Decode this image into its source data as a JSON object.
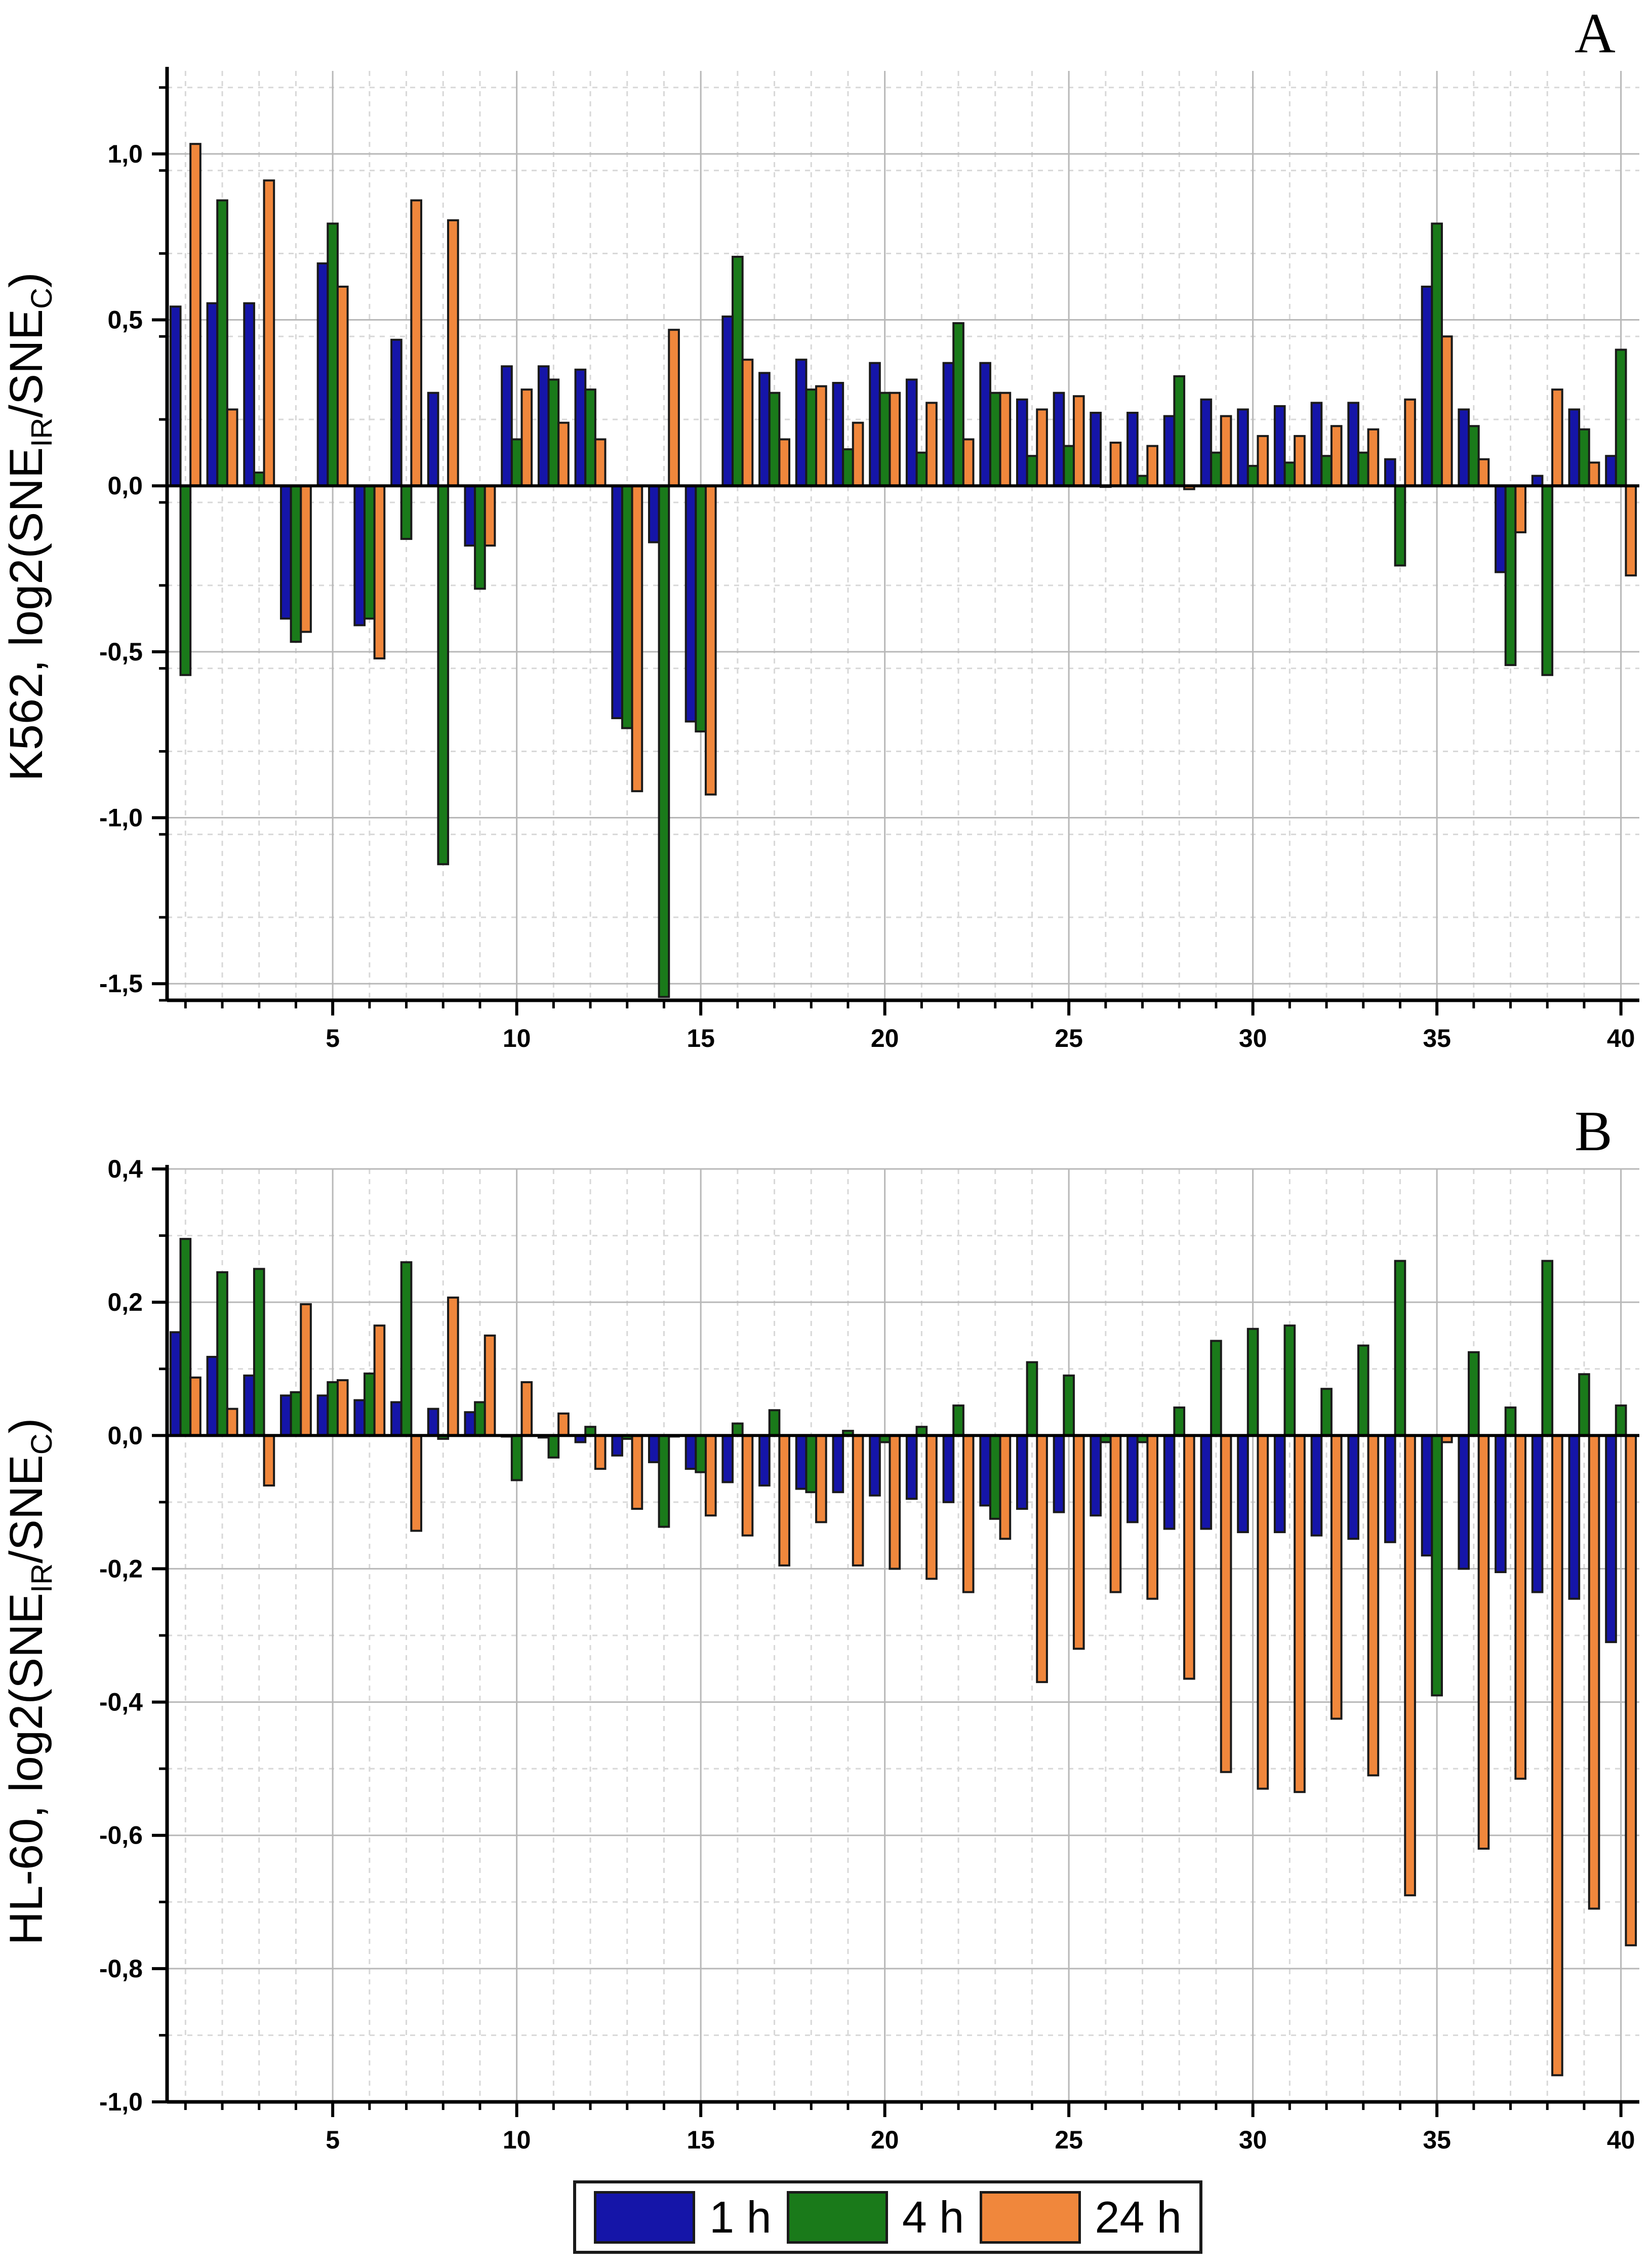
{
  "chart_data": [
    {
      "type": "bar",
      "panel": "A",
      "ylabel": "K562, log2(SNE_IR/SNE_C)",
      "ylabel_main": "K562, log2(SNE",
      "ylabel_sub1": "IR",
      "ylabel_mid": "/SNE",
      "ylabel_sub2": "C",
      "ylabel_end": ")",
      "ylim": [
        -1.55,
        1.25
      ],
      "yticks": [
        -1.5,
        -1.0,
        -0.5,
        0.0,
        0.5,
        1.0
      ],
      "ytick_labels": [
        "-1,5",
        "-1,0",
        "-0,5",
        "0,0",
        "0,5",
        "1,0"
      ],
      "xlim": [
        0.5,
        40.5
      ],
      "xticks": [
        5,
        10,
        15,
        20,
        25,
        30,
        35,
        40
      ],
      "xtick_labels": [
        "5",
        "10",
        "15",
        "20",
        "25",
        "30",
        "35",
        "40"
      ],
      "categories": [
        1,
        2,
        3,
        4,
        5,
        6,
        7,
        8,
        9,
        10,
        11,
        12,
        13,
        14,
        15,
        16,
        17,
        18,
        19,
        20,
        21,
        22,
        23,
        24,
        25,
        26,
        27,
        28,
        29,
        30,
        31,
        32,
        33,
        34,
        35,
        36,
        37,
        38,
        39,
        40
      ],
      "series": [
        {
          "name": "1 h",
          "values": [
            0.54,
            0.55,
            0.55,
            -0.4,
            0.67,
            -0.42,
            0.44,
            0.28,
            -0.18,
            0.36,
            0.36,
            0.35,
            -0.7,
            -0.17,
            -0.71,
            0.51,
            0.34,
            0.38,
            0.31,
            0.37,
            0.32,
            0.37,
            0.37,
            0.26,
            0.28,
            0.22,
            0.22,
            0.21,
            0.26,
            0.23,
            0.24,
            0.25,
            0.25,
            0.08,
            0.6,
            0.23,
            -0.26,
            0.03,
            0.23,
            0.09
          ]
        },
        {
          "name": "4 h",
          "values": [
            -0.57,
            0.86,
            0.04,
            -0.47,
            0.79,
            -0.4,
            -0.16,
            -1.14,
            -0.31,
            0.14,
            0.32,
            0.29,
            -0.73,
            -1.54,
            -0.74,
            0.69,
            0.28,
            0.29,
            0.11,
            0.28,
            0.1,
            0.49,
            0.28,
            0.09,
            0.12,
            0.0,
            0.03,
            0.33,
            0.1,
            0.06,
            0.07,
            0.09,
            0.1,
            -0.24,
            0.79,
            0.18,
            -0.54,
            -0.57,
            0.17,
            0.41
          ]
        },
        {
          "name": "24 h",
          "values": [
            1.03,
            0.23,
            0.92,
            -0.44,
            0.6,
            -0.52,
            0.86,
            0.8,
            -0.18,
            0.29,
            0.19,
            0.14,
            -0.92,
            0.47,
            -0.93,
            0.38,
            0.14,
            0.3,
            0.19,
            0.28,
            0.25,
            0.14,
            0.28,
            0.23,
            0.27,
            0.13,
            0.12,
            -0.01,
            0.21,
            0.15,
            0.15,
            0.18,
            0.17,
            0.26,
            0.45,
            0.08,
            -0.14,
            0.29,
            0.07,
            -0.27
          ]
        }
      ]
    },
    {
      "type": "bar",
      "panel": "B",
      "ylabel": "HL-60, log2(SNE_IR/SNE_C)",
      "ylabel_main": "HL-60, log2(SNE",
      "ylabel_sub1": "IR",
      "ylabel_mid": "/SNE",
      "ylabel_sub2": "C",
      "ylabel_end": ")",
      "ylim": [
        -1.0,
        0.4
      ],
      "yticks": [
        -1.0,
        -0.8,
        -0.6,
        -0.4,
        -0.2,
        0.0,
        0.2,
        0.4
      ],
      "ytick_labels": [
        "-1,0",
        "-0,8",
        "-0,6",
        "-0,4",
        "-0,2",
        "0,0",
        "0,2",
        "0,4"
      ],
      "xlim": [
        0.5,
        40.5
      ],
      "xticks": [
        5,
        10,
        15,
        20,
        25,
        30,
        35,
        40
      ],
      "xtick_labels": [
        "5",
        "10",
        "15",
        "20",
        "25",
        "30",
        "35",
        "40"
      ],
      "categories": [
        1,
        2,
        3,
        4,
        5,
        6,
        7,
        8,
        9,
        10,
        11,
        12,
        13,
        14,
        15,
        16,
        17,
        18,
        19,
        20,
        21,
        22,
        23,
        24,
        25,
        26,
        27,
        28,
        29,
        30,
        31,
        32,
        33,
        34,
        35,
        36,
        37,
        38,
        39,
        40
      ],
      "series": [
        {
          "name": "1 h",
          "values": [
            0.155,
            0.118,
            0.09,
            0.06,
            0.06,
            0.053,
            0.05,
            0.04,
            0.035,
            0.0,
            -0.003,
            -0.01,
            -0.03,
            -0.04,
            -0.05,
            -0.07,
            -0.075,
            -0.08,
            -0.085,
            -0.09,
            -0.095,
            -0.1,
            -0.105,
            -0.11,
            -0.115,
            -0.12,
            -0.13,
            -0.14,
            -0.14,
            -0.145,
            -0.145,
            -0.15,
            -0.155,
            -0.16,
            -0.18,
            -0.2,
            -0.205,
            -0.235,
            -0.245,
            -0.31
          ]
        },
        {
          "name": "4 h",
          "values": [
            0.295,
            0.245,
            0.25,
            0.065,
            0.08,
            0.093,
            0.26,
            -0.005,
            0.05,
            -0.067,
            -0.033,
            0.013,
            -0.005,
            -0.137,
            -0.055,
            0.018,
            0.038,
            -0.085,
            0.007,
            -0.01,
            0.013,
            0.045,
            -0.125,
            0.11,
            0.09,
            -0.01,
            -0.01,
            0.042,
            0.142,
            0.16,
            0.165,
            0.07,
            0.135,
            0.262,
            -0.39,
            0.125,
            0.042,
            0.262,
            0.092,
            0.045
          ]
        },
        {
          "name": "24 h",
          "values": [
            0.087,
            0.04,
            -0.075,
            0.197,
            0.083,
            0.165,
            -0.143,
            0.207,
            0.15,
            0.08,
            0.033,
            -0.05,
            -0.11,
            0.0,
            -0.12,
            -0.15,
            -0.195,
            -0.13,
            -0.195,
            -0.2,
            -0.215,
            -0.235,
            -0.155,
            -0.37,
            -0.32,
            -0.235,
            -0.245,
            -0.365,
            -0.505,
            -0.53,
            -0.535,
            -0.425,
            -0.51,
            -0.69,
            -0.01,
            -0.62,
            -0.515,
            -0.96,
            -0.71,
            -0.765
          ]
        }
      ]
    }
  ],
  "legend": {
    "items": [
      {
        "label": "1 h",
        "color": "#1515a8"
      },
      {
        "label": "4 h",
        "color": "#1a7a1a"
      },
      {
        "label": "24 h",
        "color": "#f0873c"
      }
    ]
  }
}
